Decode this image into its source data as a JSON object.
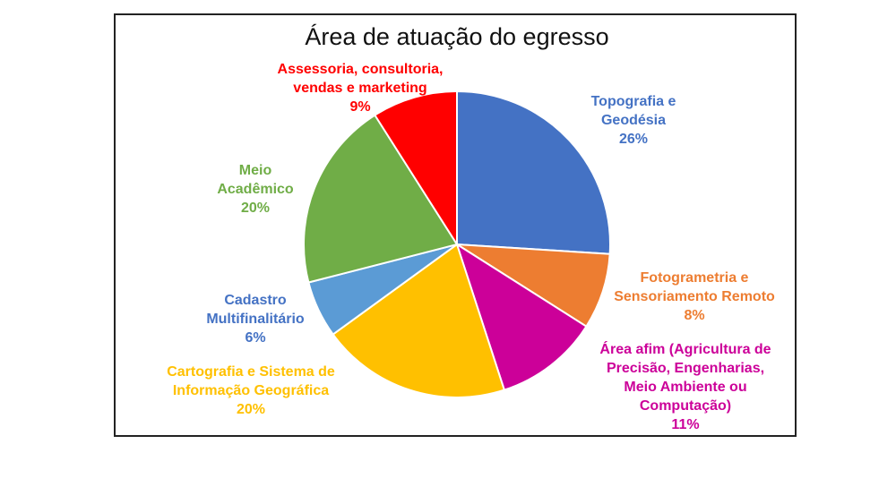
{
  "chart_data": {
    "type": "pie",
    "title": "Área de atuação do egresso",
    "slices": [
      {
        "label": [
          "Topografia e",
          "Geodésia"
        ],
        "value_label": "26%",
        "value": 26,
        "color": "#4472C4"
      },
      {
        "label": [
          "Fotogrametria e",
          "Sensoriamento Remoto"
        ],
        "value_label": "8%",
        "value": 8,
        "color": "#ED7D31"
      },
      {
        "label": [
          "Área afim (Agricultura de",
          "Precisão, Engenharias,",
          "Meio Ambiente ou",
          "Computação)"
        ],
        "value_label": "11%",
        "value": 11,
        "color": "#CC0099"
      },
      {
        "label": [
          "Cartografia e Sistema de",
          "Informação Geográfica"
        ],
        "value_label": "20%",
        "value": 20,
        "color": "#FFC000"
      },
      {
        "label": [
          "Cadastro",
          "Multifinalitário"
        ],
        "value_label": "6%",
        "value": 6,
        "color": "#5B9BD5"
      },
      {
        "label": [
          "Meio",
          "Acadêmico"
        ],
        "value_label": "20%",
        "value": 20,
        "color": "#70AD47"
      },
      {
        "label": [
          "Assessoria, consultoria,",
          "vendas e marketing"
        ],
        "value_label": "9%",
        "value": 9,
        "color": "#FF0000"
      }
    ],
    "label_colors": [
      "#4472C4",
      "#ED7D31",
      "#CC0099",
      "#FFC000",
      "#4472C4",
      "#70AD47",
      "#FF0000"
    ],
    "start": "12 o'clock",
    "direction": "clockwise"
  }
}
